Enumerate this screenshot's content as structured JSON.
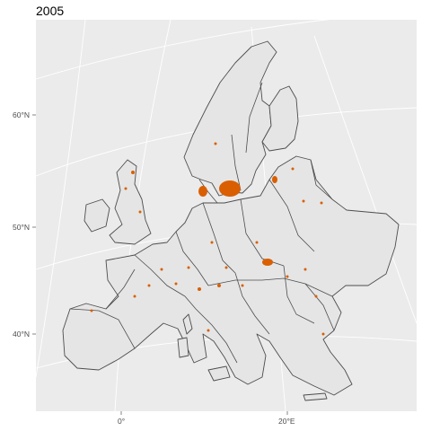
{
  "map": {
    "title": "2005",
    "y_axis_labels": [
      "60°N",
      "50°N",
      "40°N"
    ],
    "x_axis_labels": [
      "0°",
      "20°E"
    ],
    "colors": {
      "panel_background": "#ebebeb",
      "land": "#e5e5e5",
      "outline": "#4d4d4d",
      "graticule": "#ffffff",
      "highlight": "#d95f02"
    }
  }
}
